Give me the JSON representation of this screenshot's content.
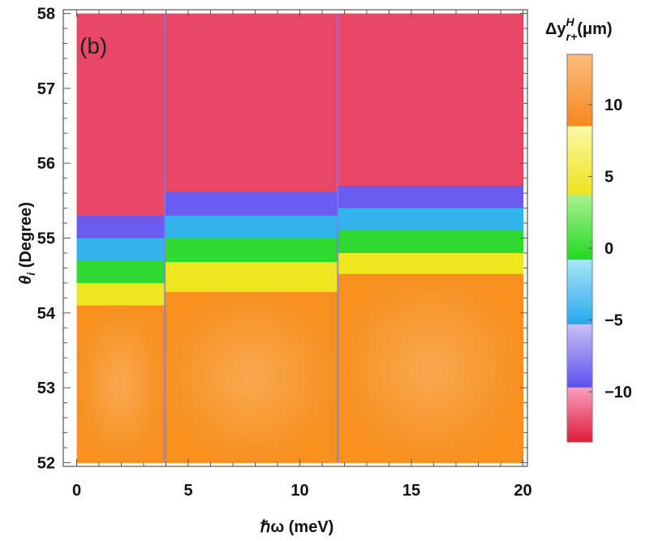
{
  "panel_label": "(b)",
  "colorbar": {
    "title_main": "Δy",
    "title_sup": "H",
    "title_sub": "r+",
    "title_unit": "(μm)",
    "ticks": [
      {
        "value": 10,
        "label": "10"
      },
      {
        "value": 5,
        "label": "5"
      },
      {
        "value": 0,
        "label": "0"
      },
      {
        "value": -5,
        "label": "−5"
      },
      {
        "value": -10,
        "label": "−10"
      }
    ],
    "range": [
      -13.5,
      13.5
    ],
    "bands": [
      {
        "from": 8.5,
        "to": 13.5,
        "color_top": "#fbbc7c",
        "color_bottom": "#f7871d"
      },
      {
        "from": 3.7,
        "to": 8.5,
        "color_top": "#fbfaa6",
        "color_bottom": "#eee21a"
      },
      {
        "from": -0.8,
        "to": 3.7,
        "color_top": "#a9f190",
        "color_bottom": "#1fda1f"
      },
      {
        "from": -5.3,
        "to": -0.8,
        "color_top": "#a8e6f7",
        "color_bottom": "#25a8ee"
      },
      {
        "from": -9.7,
        "to": -5.3,
        "color_top": "#c8c0f6",
        "color_bottom": "#5d4ff0"
      },
      {
        "from": -13.5,
        "to": -9.7,
        "color_top": "#fb9fc0",
        "color_bottom": "#e01937"
      }
    ]
  },
  "chart_data": {
    "type": "heatmap",
    "title": "",
    "xlabel": "ℏω (meV)",
    "ylabel_main": "θ",
    "ylabel_sub": "i",
    "ylabel_rest": " (Degree)",
    "xlim": [
      -0.6,
      20.2
    ],
    "ylim": [
      51.95,
      58.05
    ],
    "x_ticks": [
      0,
      5,
      10,
      15,
      20
    ],
    "y_ticks": [
      52,
      53,
      54,
      55,
      56,
      57,
      58
    ],
    "data_xrange": [
      0,
      20
    ],
    "data_yrange": [
      52,
      58
    ],
    "resonances_meV": [
      3.95,
      11.7
    ],
    "regions": [
      {
        "x_range": [
          0,
          3.95
        ],
        "band_top_boundaries_deg": [
          58.0,
          55.3,
          55.0,
          54.7,
          54.4,
          54.1
        ],
        "colors_top_to_bottom": [
          "#e22a48",
          "#6a5cf0",
          "#33b4ec",
          "#2fd92f",
          "#eee61e",
          "#f7901f"
        ]
      },
      {
        "x_range": [
          3.95,
          11.7
        ],
        "band_top_boundaries_deg": [
          58.0,
          55.62,
          55.3,
          55.0,
          54.68,
          54.28
        ],
        "colors_top_to_bottom": [
          "#e22a48",
          "#6a5cf0",
          "#33b4ec",
          "#2fd92f",
          "#eee61e",
          "#f7901f"
        ]
      },
      {
        "x_range": [
          11.7,
          20
        ],
        "band_top_boundaries_deg": [
          58.0,
          55.7,
          55.4,
          55.1,
          54.8,
          54.52
        ],
        "colors_top_to_bottom": [
          "#e22a48",
          "#6a5cf0",
          "#33b4ec",
          "#2fd92f",
          "#eee61e",
          "#f7901f"
        ]
      }
    ],
    "grid": false,
    "legend": "colorbar-right"
  }
}
